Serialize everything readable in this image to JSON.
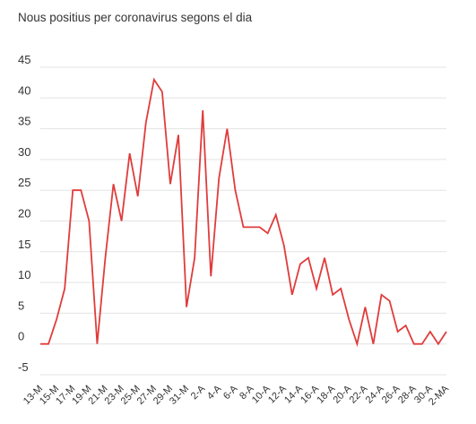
{
  "chart_data": {
    "type": "line",
    "title": "Nous positius per coronavirus segons el dia",
    "xlabel": "",
    "ylabel": "",
    "ylim": [
      -5,
      45
    ],
    "yticks": [
      -5,
      0,
      5,
      10,
      15,
      20,
      25,
      30,
      35,
      40,
      45
    ],
    "grid": true,
    "x_labels": [
      "13-M",
      "15-M",
      "17-M",
      "19-M",
      "21-M",
      "23-M",
      "25-M",
      "27-M",
      "29-M",
      "31-M",
      "2-A",
      "4-A",
      "6-A",
      "8-A",
      "10-A",
      "12-A",
      "14-A",
      "16-A",
      "18-A",
      "20-A",
      "22-A",
      "24-A",
      "26-A",
      "28-A",
      "30-A",
      "2-MA"
    ],
    "series": [
      {
        "color": "#e03c3c",
        "values": [
          0,
          0,
          4,
          9,
          25,
          25,
          20,
          0,
          14,
          26,
          20,
          31,
          24,
          36,
          43,
          41,
          26,
          34,
          6,
          14,
          38,
          11,
          27,
          35,
          25,
          19,
          19,
          19,
          18,
          21,
          16,
          8,
          13,
          14,
          9,
          14,
          8,
          9,
          4,
          0,
          6,
          0,
          8,
          7,
          2,
          3,
          0,
          0,
          2,
          0,
          2
        ]
      }
    ]
  }
}
